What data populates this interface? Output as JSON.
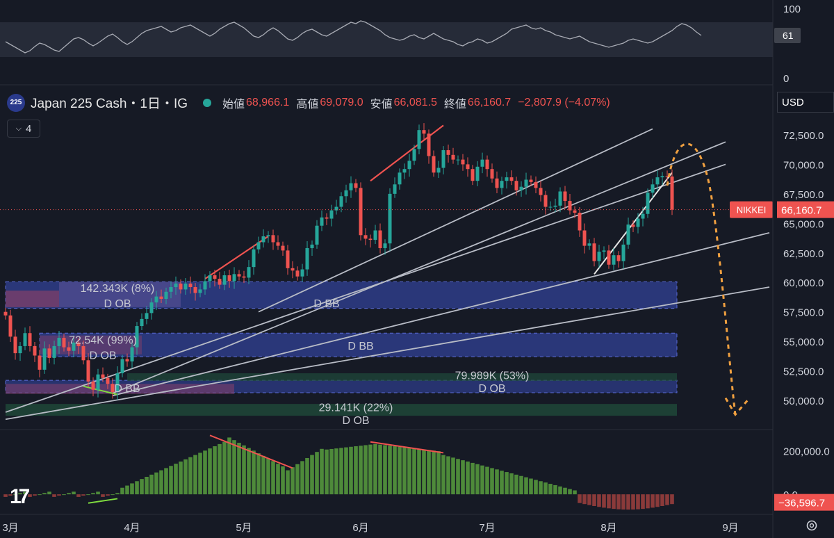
{
  "header": {
    "symbol_badge": "225",
    "title": "Japan 225 Cash・1日・IG",
    "open_label": "始値",
    "open": "68,966.1",
    "high_label": "高値",
    "high": "69,079.0",
    "low_label": "安値",
    "low": "66,081.5",
    "close_label": "終値",
    "close": "66,160.7",
    "change": "−2,807.9 (−4.07%)",
    "indicator_count": "4",
    "currency": "USD"
  },
  "colors": {
    "up": "#26a69a",
    "down": "#ef5350",
    "demand_box": "#2f3f8f",
    "bull_box": "#1f4a3a",
    "pink_box": "#7a3f6a",
    "forecast": "#f0a040",
    "trend": "#b8bcc6"
  },
  "chart_data": [
    {
      "type": "line",
      "panel": "oscillator",
      "ylim": [
        0,
        100
      ],
      "y_ticks": [
        "100",
        "0"
      ],
      "current_value": "61",
      "band": [
        30,
        80
      ],
      "values": [
        52,
        48,
        44,
        40,
        36,
        39,
        45,
        50,
        48,
        44,
        40,
        38,
        44,
        50,
        56,
        58,
        55,
        50,
        46,
        50,
        55,
        60,
        63,
        58,
        52,
        48,
        52,
        58,
        64,
        68,
        70,
        72,
        74,
        70,
        66,
        68,
        72,
        74,
        76,
        72,
        68,
        64,
        60,
        64,
        70,
        74,
        78,
        80,
        76,
        72,
        66,
        60,
        58,
        62,
        68,
        72,
        68,
        62,
        56,
        54,
        58,
        64,
        68,
        70,
        66,
        62,
        60,
        64,
        68,
        72,
        76,
        80,
        78,
        82,
        80,
        76,
        72,
        68,
        62,
        58,
        56,
        54,
        56,
        60,
        62,
        58,
        56,
        60,
        64,
        60,
        56,
        54,
        52,
        48,
        46,
        50,
        52,
        56,
        54,
        50,
        52,
        56,
        60,
        64,
        70,
        72,
        74,
        76,
        72,
        70,
        72,
        68,
        66,
        62,
        60,
        58,
        56,
        58,
        60,
        56,
        52,
        50,
        48,
        46,
        44,
        46,
        48,
        50,
        54,
        56,
        54,
        52,
        50,
        52,
        56,
        60,
        64,
        68,
        74,
        78,
        76,
        72,
        66,
        61
      ]
    },
    {
      "type": "candlestick",
      "panel": "price",
      "title": "Japan 225 Cash・1日・IG",
      "y_ticks": [
        "72,500.0",
        "70,000.0",
        "67,500.0",
        "65,000.0",
        "62,500.0",
        "60,000.0",
        "57,500.0",
        "55,000.0",
        "52,500.0",
        "50,000.0"
      ],
      "ylim": [
        48000,
        74500
      ],
      "x_ticks": [
        {
          "label": "3月",
          "i": 1
        },
        {
          "label": "4月",
          "i": 26
        },
        {
          "label": "5月",
          "i": 49
        },
        {
          "label": "6月",
          "i": 73
        },
        {
          "label": "7月",
          "i": 99
        },
        {
          "label": "8月",
          "i": 124
        },
        {
          "label": "9月",
          "i": 149
        }
      ],
      "last_price_label": "NIKKEI",
      "last_price": "66,160.7",
      "close_series": [
        57200,
        55400,
        54000,
        54600,
        55700,
        54600,
        53800,
        52600,
        54400,
        53600,
        54600,
        55300,
        54500,
        54200,
        54900,
        54600,
        53400,
        51600,
        50900,
        52200,
        51900,
        51400,
        50700,
        52300,
        53500,
        53300,
        54500,
        56300,
        56900,
        57400,
        58300,
        58800,
        58600,
        59200,
        59600,
        59900,
        59400,
        59900,
        59600,
        59100,
        59400,
        60100,
        60600,
        60300,
        59800,
        60600,
        60100,
        60700,
        60500,
        60400,
        61300,
        62800,
        63400,
        63900,
        64000,
        63400,
        63100,
        62700,
        61200,
        61000,
        60500,
        61100,
        62900,
        63200,
        64800,
        65500,
        65400,
        66100,
        66400,
        67300,
        67800,
        68400,
        68000,
        64000,
        63700,
        63600,
        64400,
        62900,
        63300,
        67500,
        68300,
        69300,
        69600,
        70300,
        71300,
        72900,
        72600,
        70700,
        69300,
        69700,
        71200,
        70800,
        70400,
        70400,
        70000,
        69600,
        68600,
        69800,
        70400,
        69600,
        68800,
        68000,
        68600,
        68900,
        68600,
        67800,
        68100,
        68700,
        68500,
        68000,
        67400,
        66400,
        66400,
        66500,
        67700,
        66900,
        66100,
        65900,
        64400,
        63100,
        63300,
        61800,
        62600,
        62700,
        61500,
        62300,
        61800,
        63200,
        64900,
        64700,
        65400,
        65800,
        67600,
        68300,
        68900,
        69000,
        68970,
        66160
      ],
      "annotations": [
        {
          "label": "142.343K (8%)",
          "sub": "D OB"
        },
        {
          "label": "72.54K (99%)",
          "sub": "D OB"
        },
        {
          "label": "D BB"
        },
        {
          "label": "D BB"
        },
        {
          "label": "D BB"
        },
        {
          "label": "79.989K (53%)",
          "sub": "D OB"
        },
        {
          "label": "29.141K (22%)",
          "sub": "D OB"
        }
      ]
    },
    {
      "type": "bar",
      "panel": "histogram",
      "y_ticks": [
        "200,000.0",
        "0.0"
      ],
      "current_value": "−36,596.7",
      "ylim": [
        -60000,
        290000
      ]
    }
  ]
}
